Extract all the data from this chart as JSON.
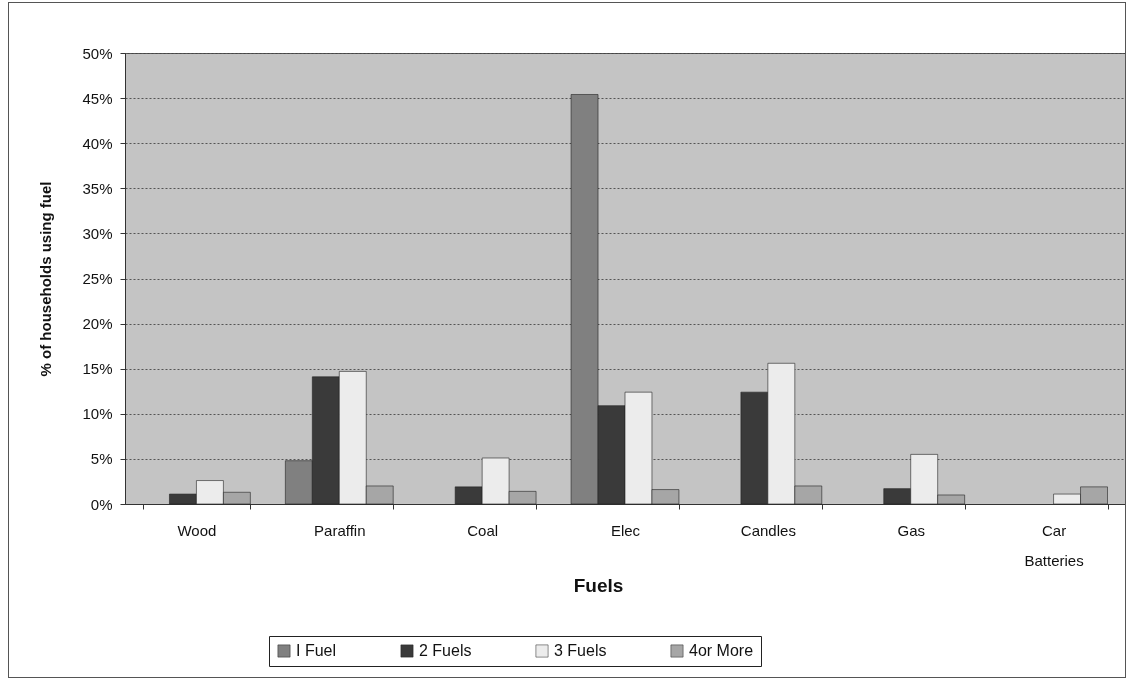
{
  "chart_data": {
    "type": "bar",
    "xlabel": "Fuels",
    "ylabel": "% of households using fuel",
    "categories": [
      "Wood",
      "Paraffin",
      "Coal",
      "Elec",
      "Candles",
      "Gas",
      "Car Batteries"
    ],
    "series": [
      {
        "name": "I Fuel",
        "color": "#808080",
        "values": [
          null,
          4.8,
          null,
          45.4,
          null,
          null,
          null
        ]
      },
      {
        "name": "2 Fuels",
        "color": "#3a3a3a",
        "values": [
          1.1,
          14.1,
          1.9,
          10.9,
          12.4,
          1.7,
          null
        ]
      },
      {
        "name": "3 Fuels",
        "color": "#ececec",
        "values": [
          2.6,
          14.7,
          5.1,
          12.4,
          15.6,
          5.5,
          1.1
        ]
      },
      {
        "name": "4or More",
        "color": "#a6a6a6",
        "values": [
          1.3,
          2.0,
          1.4,
          1.6,
          2.0,
          1.0,
          1.9
        ]
      }
    ],
    "ylim": [
      0,
      50
    ],
    "yticks": [
      {
        "value": 0,
        "label": "0%"
      },
      {
        "value": 5,
        "label": "5%"
      },
      {
        "value": 10,
        "label": "10%"
      },
      {
        "value": 15,
        "label": "15%"
      },
      {
        "value": 20,
        "label": "20%"
      },
      {
        "value": 25,
        "label": "25%"
      },
      {
        "value": 30,
        "label": "30%"
      },
      {
        "value": 35,
        "label": "35%"
      },
      {
        "value": 40,
        "label": "40%"
      },
      {
        "value": 45,
        "label": "45%"
      },
      {
        "value": 50,
        "label": "50%"
      }
    ],
    "grid": true,
    "legend": "bottom"
  }
}
